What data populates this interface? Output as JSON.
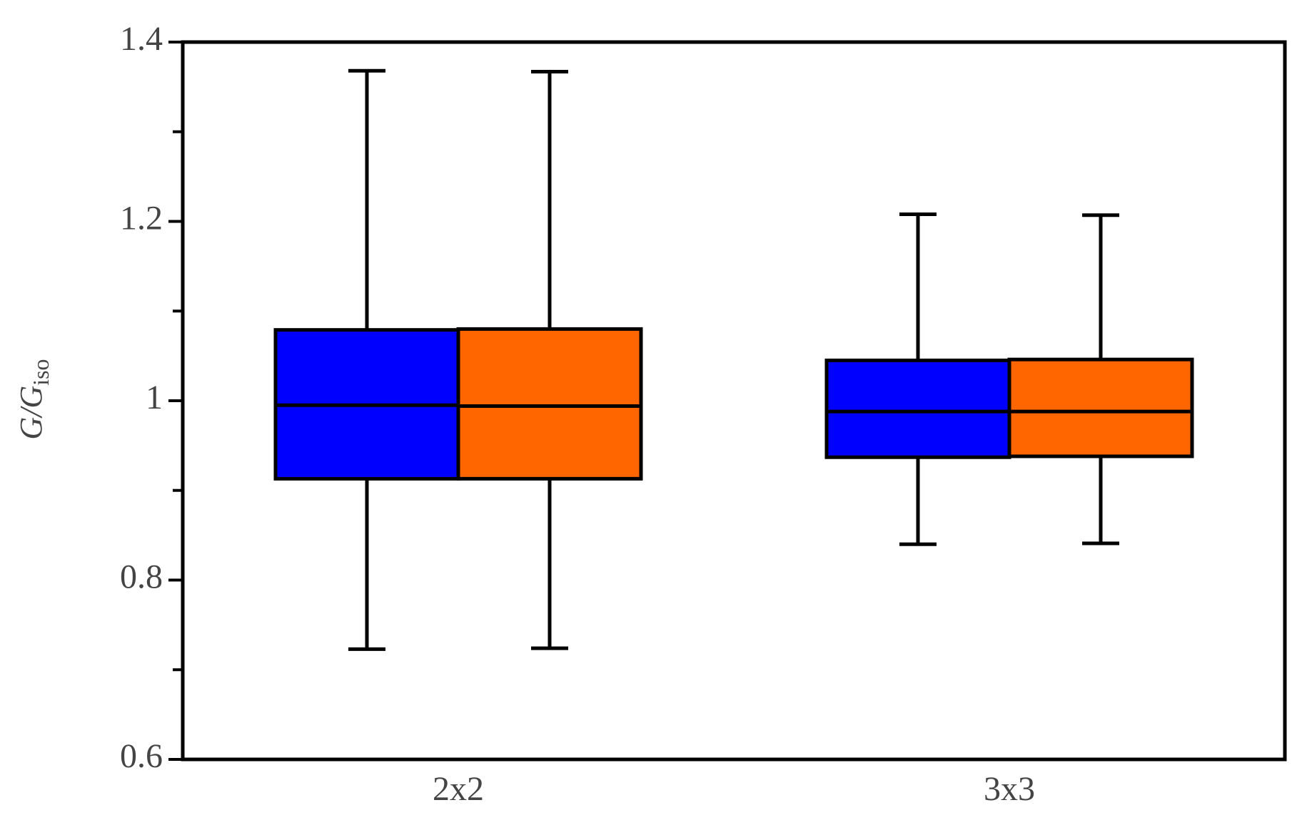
{
  "chart_data": {
    "type": "box",
    "categories": [
      "2x2",
      "3x3"
    ],
    "ylabel": "G/G",
    "ylabel_subscript": "iso",
    "ylim": [
      0.6,
      1.4
    ],
    "yticks": [
      0.6,
      0.8,
      1,
      1.2,
      1.4
    ],
    "yminor_ticks": [
      0.7,
      0.9,
      1.1,
      1.3
    ],
    "series": [
      {
        "color": "#0000ff",
        "whisker_low": [
          0.723,
          0.84
        ],
        "q1": [
          0.913,
          0.937
        ],
        "median": [
          0.995,
          0.988
        ],
        "q3": [
          1.079,
          1.045
        ],
        "whisker_high": [
          1.368,
          1.208
        ]
      },
      {
        "color": "#ff6600",
        "whisker_low": [
          0.724,
          0.841
        ],
        "q1": [
          0.913,
          0.938
        ],
        "median": [
          0.994,
          0.988
        ],
        "q3": [
          1.08,
          1.046
        ],
        "whisker_high": [
          1.367,
          1.207
        ]
      }
    ]
  }
}
